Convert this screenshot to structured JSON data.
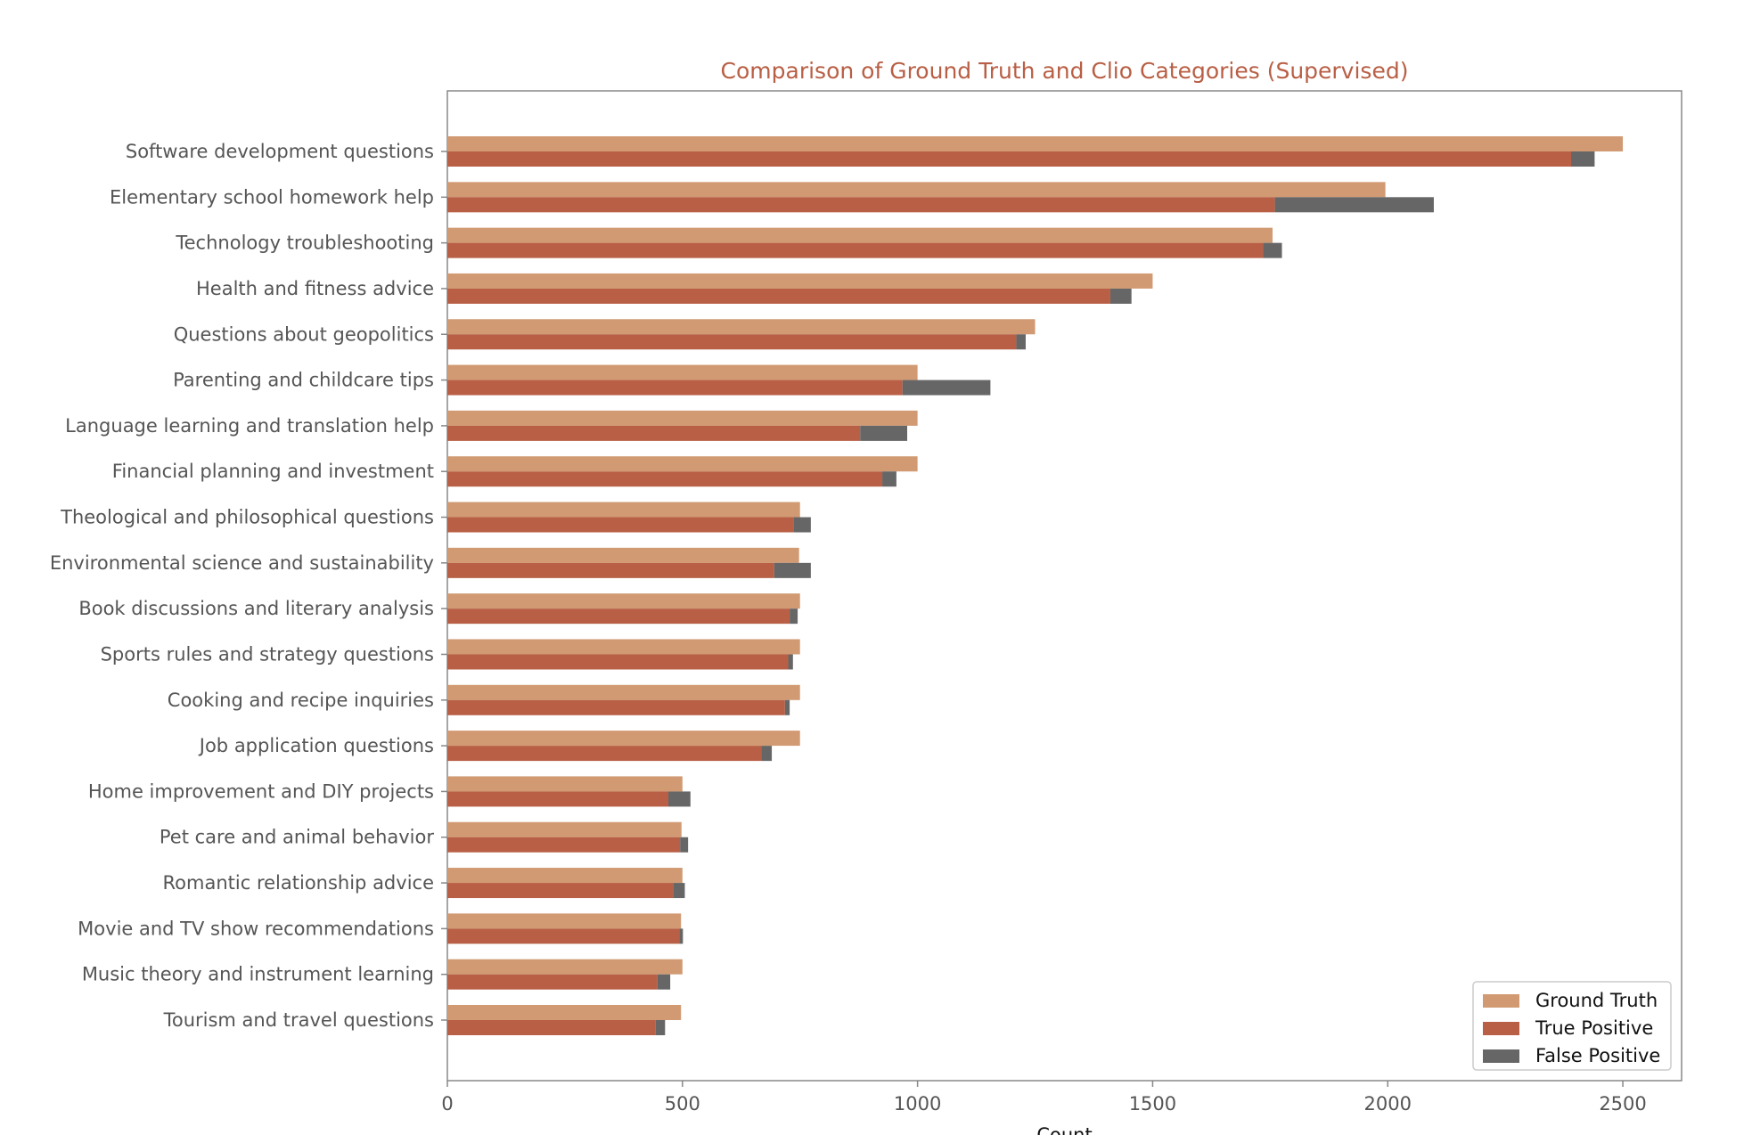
{
  "chart_data": {
    "type": "bar",
    "orientation": "horizontal",
    "title": "Comparison of Ground Truth and Clio Categories (Supervised)",
    "xlabel": "Count",
    "ylabel": "",
    "xlim": [
      0,
      2625
    ],
    "xticks": [
      0,
      500,
      1000,
      1500,
      2000,
      2500
    ],
    "grid": false,
    "legend_position": "bottom-right",
    "categories": [
      "Software development questions",
      "Elementary school homework help",
      "Technology troubleshooting",
      "Health and fitness advice",
      "Questions about geopolitics",
      "Parenting and childcare tips",
      "Language learning and translation help",
      "Financial planning and investment",
      "Theological and philosophical questions",
      "Environmental science and sustainability",
      "Book discussions and literary analysis",
      "Sports rules and strategy questions",
      "Cooking and recipe inquiries",
      "Job application questions",
      "Home improvement and DIY projects",
      "Pet care and animal behavior",
      "Romantic relationship advice",
      "Movie and TV show recommendations",
      "Music theory and instrument learning",
      "Tourism and travel questions"
    ],
    "series": [
      {
        "name": "Ground Truth",
        "color": "#d19a73",
        "values": [
          2500,
          1995,
          1755,
          1500,
          1250,
          1000,
          1000,
          1000,
          750,
          748,
          750,
          750,
          750,
          750,
          500,
          498,
          500,
          497,
          500,
          497
        ]
      },
      {
        "name": "True Positive",
        "color": "#b85f45",
        "values": [
          2390,
          1760,
          1735,
          1410,
          1210,
          968,
          878,
          925,
          736,
          695,
          728,
          725,
          718,
          668,
          470,
          495,
          480,
          493,
          447,
          443
        ]
      },
      {
        "name": "False Positive",
        "color": "#666666",
        "values": [
          50,
          338,
          40,
          45,
          20,
          187,
          100,
          30,
          37,
          78,
          17,
          10,
          10,
          22,
          47,
          17,
          25,
          8,
          27,
          20
        ]
      }
    ]
  }
}
